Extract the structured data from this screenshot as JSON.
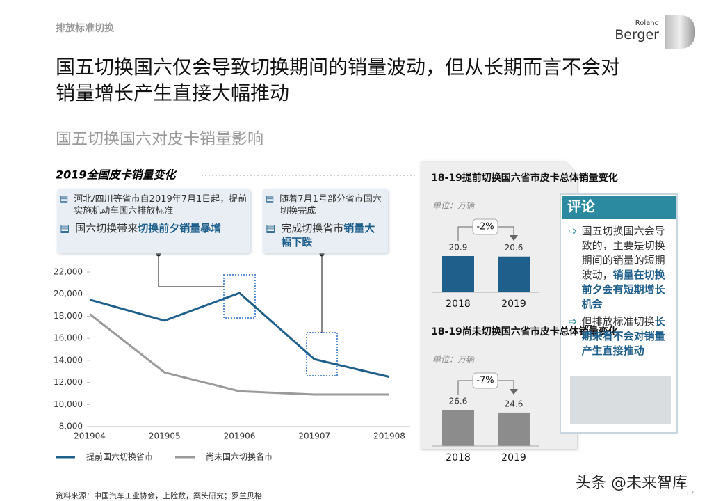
{
  "header": {
    "section": "排放标准切换",
    "title_lines": [
      "国五切换国六仅会导致切换期间的销量波动，但从长期而言不会对",
      "销量增长产生直接大幅推动"
    ],
    "subtitle": "国五切换国六对皮卡销量影响",
    "logo": [
      "Roland",
      "Berger"
    ]
  },
  "chart_data": [
    {
      "type": "line",
      "title": "2019全国皮卡销量变化",
      "categories": [
        "201904",
        "201905",
        "201906",
        "201907",
        "201908"
      ],
      "series": [
        {
          "name": "提前国六切换省市",
          "color": "#1f5f8b",
          "values": [
            19500,
            17600,
            20100,
            14100,
            12500
          ]
        },
        {
          "name": "尚未国六切换省市",
          "color": "#9a9a9a",
          "values": [
            18200,
            12900,
            11200,
            10900,
            10900
          ]
        }
      ],
      "ylim": [
        8000,
        22000
      ],
      "yticks": [
        {
          "value": 8000,
          "label": "8,000"
        },
        {
          "value": 10000,
          "label": "10,000"
        },
        {
          "value": 12000,
          "label": "12,000"
        },
        {
          "value": 14000,
          "label": "14,000"
        },
        {
          "value": 16000,
          "label": "16,000"
        },
        {
          "value": 18000,
          "label": "18,000"
        },
        {
          "value": 20000,
          "label": "20,000"
        },
        {
          "value": 22000,
          "label": "22,000"
        }
      ],
      "annotations": [
        [
          {
            "plain": "河北/四川等省市自2019年7月1日起，提前实施机动车国六排放标准",
            "bold": ""
          },
          {
            "plain": "国六切换带来",
            "bold": "切换前夕销量暴增"
          }
        ],
        [
          {
            "plain": "随着7月1号部分省市国六切换完成",
            "bold": ""
          },
          {
            "plain": "完成切换省市",
            "bold": "销量大幅下跌"
          }
        ]
      ]
    },
    {
      "type": "bar",
      "title": "18-19提前切换国六省市皮卡总体销量变化",
      "unit": "单位：万辆",
      "change": "-2%",
      "categories": [
        "2018",
        "2019"
      ],
      "values": [
        20.9,
        20.6
      ],
      "color": "#1f5f8b"
    },
    {
      "type": "bar",
      "title": "18-19尚未切换国六省市皮卡总体销量变化",
      "unit": "单位：万辆",
      "change": "-7%",
      "categories": [
        "2018",
        "2019"
      ],
      "values": [
        26.6,
        24.6
      ],
      "color": "#8c8c8c"
    }
  ],
  "comment": {
    "title": "评论",
    "items": [
      {
        "plain": "国五切换国六会导致的，主要是切换期间的销量的短期波动，",
        "bold": "销量在切换前夕会有短期增长机会"
      },
      {
        "plain": "但排放标准切换",
        "bold": "长期来看不会对销量产生直接推动"
      }
    ]
  },
  "footer": {
    "source": "资料来源：中国汽车工业协会，上险数，案头研究；罗兰贝格",
    "page": "17",
    "watermark": "头条 @未来智库"
  }
}
